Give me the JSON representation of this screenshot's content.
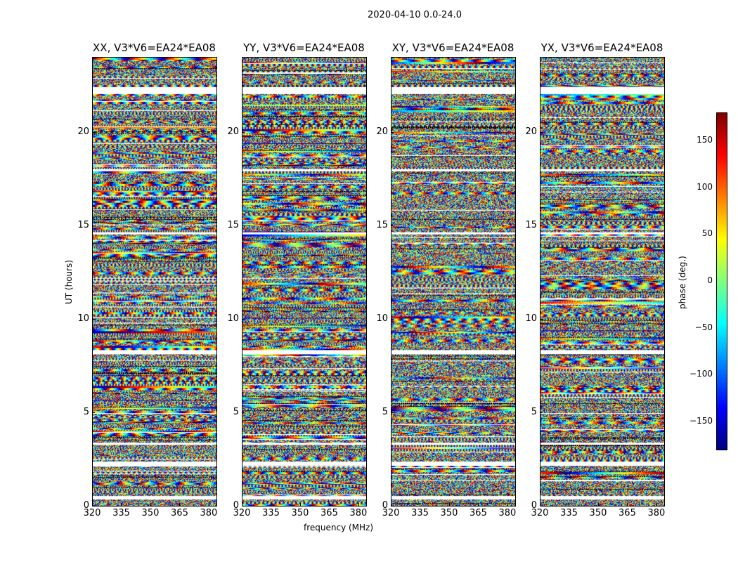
{
  "chart_data": {
    "type": "heatmap",
    "title": "2020-04-10 0.0-24.0",
    "xlabel": "frequency (MHz)",
    "ylabel": "UT (hours)",
    "xlim": [
      320,
      384
    ],
    "ylim": [
      0,
      24
    ],
    "xticks": [
      "320",
      "335",
      "350",
      "365",
      "380"
    ],
    "xtick_values": [
      320,
      335,
      350,
      365,
      380
    ],
    "yticks": [
      "0",
      "5",
      "10",
      "15",
      "20"
    ],
    "ytick_values": [
      0,
      5,
      10,
      15,
      20
    ],
    "panels": [
      {
        "title": "XX, V3*V6=EA24*EA08"
      },
      {
        "title": "YY, V3*V6=EA24*EA08"
      },
      {
        "title": "XY, V3*V6=EA24*EA08"
      },
      {
        "title": "YX, V3*V6=EA24*EA08"
      }
    ],
    "flagged_hours": [
      [
        0.35,
        0.55
      ],
      [
        2.15,
        2.4
      ],
      [
        3.3,
        3.4
      ],
      [
        8.15,
        8.35
      ],
      [
        14.55,
        14.65
      ],
      [
        17.95,
        18.05
      ],
      [
        22.05,
        22.45
      ]
    ],
    "colorbar": {
      "label": "phase (deg.)",
      "range": [
        -180,
        180
      ],
      "ticks": [
        "150",
        "100",
        "50",
        "0",
        "−50",
        "−100",
        "−150"
      ],
      "tick_values": [
        150,
        100,
        50,
        0,
        -50,
        -100,
        -150
      ],
      "colormap": "jet"
    }
  }
}
